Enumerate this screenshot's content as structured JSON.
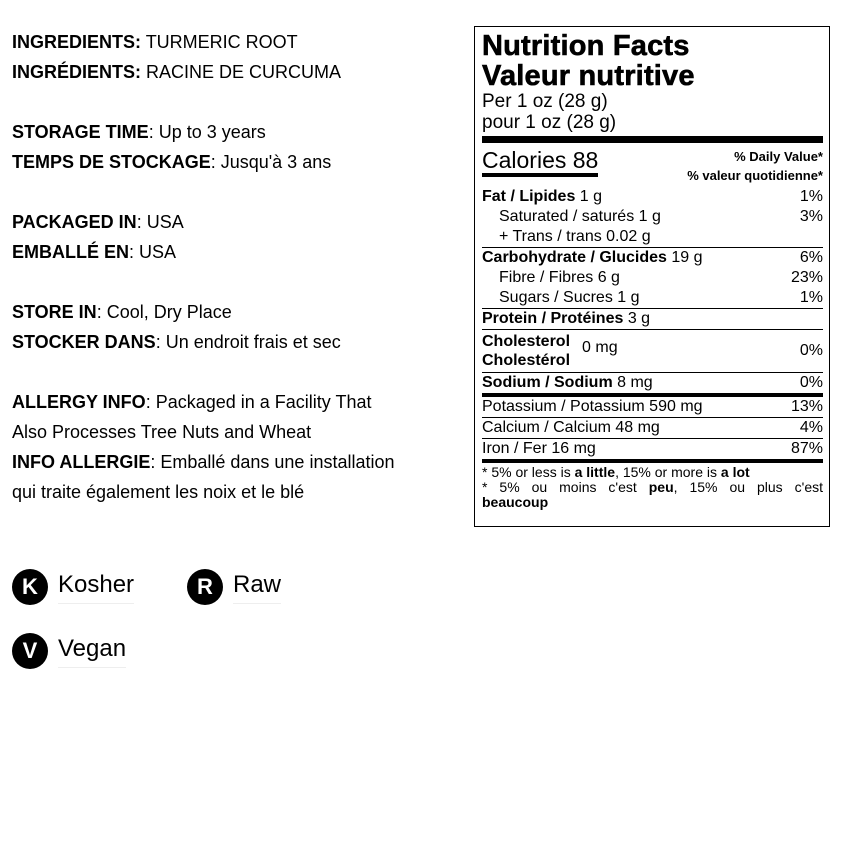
{
  "info": [
    {
      "k": "INGREDIENTS:",
      "v": " TURMERIC ROOT"
    },
    {
      "k": "INGRÉDIENTS:",
      "v": " RACINE DE CURCUMA"
    },
    {
      "k": "STORAGE TIME",
      "v": ": Up to 3 years"
    },
    {
      "k": "TEMPS DE STOCKAGE",
      "v": ": Jusqu'à 3 ans"
    },
    {
      "k": "PACKAGED IN",
      "v": ": USA"
    },
    {
      "k": "EMBALLÉ EN",
      "v": ": USA"
    },
    {
      "k": "STORE IN",
      "v": ": Cool, Dry Place"
    },
    {
      "k": "STOCKER DANS",
      "v": ": Un endroit frais et sec"
    },
    {
      "k": "ALLERGY INFO",
      "v": ": Packaged in a Facility That"
    },
    {
      "k": "",
      "v": "Also Processes Tree Nuts and Wheat"
    },
    {
      "k": "INFO ALLERGIE",
      "v": ": Emballé dans une installation"
    },
    {
      "k": "",
      "v": "qui traite également les noix et le blé"
    }
  ],
  "label": {
    "title_en": "Nutrition Facts",
    "title_fr": "Valeur nutritive",
    "serving_en": "Per 1 oz (28 g)",
    "serving_fr": "pour 1 oz (28 g)",
    "calories": "Calories 88",
    "dv_en": "% Daily Value*",
    "dv_fr": "% valeur quotidienne*",
    "fat": {
      "n": "Fat / Lipides",
      "a": " 1 g",
      "p": "1%"
    },
    "sat": {
      "n": "Saturated / saturés 1 g",
      "p": "3%"
    },
    "trans": {
      "n": "+ Trans / trans 0.02 g"
    },
    "carb": {
      "n": "Carbohydrate / Glucides",
      "a": " 19 g",
      "p": "6%"
    },
    "fibre": {
      "n": "Fibre / Fibres 6 g",
      "p": "23%"
    },
    "sugars": {
      "n": "Sugars / Sucres 1 g",
      "p": "1%"
    },
    "protein": {
      "n": "Protein / Protéines",
      "a": " 3 g"
    },
    "chol": {
      "n1": "Cholesterol",
      "n2": "Cholestérol",
      "a": "0 mg",
      "p": "0%"
    },
    "sodium": {
      "n": "Sodium / Sodium",
      "a": " 8 mg",
      "p": "0%"
    },
    "potassium": {
      "n": "Potassium / Potassium 590 mg",
      "p": "13%"
    },
    "calcium": {
      "n": "Calcium / Calcium 48 mg",
      "p": "4%"
    },
    "iron": {
      "n": "Iron / Fer 16 mg",
      "p": "87%"
    },
    "foot1": [
      "* 5% or less is ",
      "a little",
      ", 15% or more is ",
      "a lot"
    ],
    "foot2": [
      "* 5% ou moins c'est ",
      "peu",
      ", 15% ou plus c'est ",
      "beaucoup"
    ]
  },
  "badges": [
    {
      "icon": "K",
      "label": "Kosher"
    },
    {
      "icon": "R",
      "label": "Raw"
    },
    {
      "icon": "V",
      "label": "Vegan"
    }
  ]
}
